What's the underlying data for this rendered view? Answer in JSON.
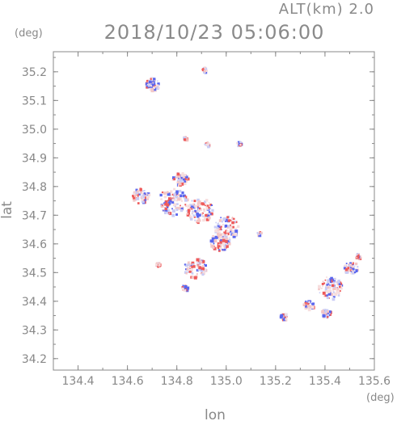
{
  "chart_data": {
    "type": "scatter",
    "title": "2018/10/23 05:06:00",
    "subtitle": "ALT(km) 2.0",
    "xlabel": "lon",
    "ylabel": "lat",
    "x_unit": "(deg)",
    "y_unit": "(deg)",
    "xlim": [
      134.3,
      135.6
    ],
    "ylim": [
      34.16,
      35.27
    ],
    "x_ticks": [
      "134.4",
      "134.6",
      "134.8",
      "135.0",
      "135.2",
      "135.4",
      "135.6"
    ],
    "y_ticks": [
      "34.2",
      "34.3",
      "34.4",
      "34.5",
      "34.6",
      "34.7",
      "34.8",
      "34.9",
      "35.0",
      "35.1",
      "35.2"
    ],
    "grid": false,
    "colors": {
      "positive": "#ee5a5a",
      "negative": "#5a66ee",
      "faint": "#f3c6c6",
      "axis": "#888888"
    },
    "clusters": [
      {
        "lon": 134.7,
        "lat": 35.16,
        "r": 0.03
      },
      {
        "lon": 134.91,
        "lat": 35.21,
        "r": 0.01
      },
      {
        "lon": 134.83,
        "lat": 34.97,
        "r": 0.008
      },
      {
        "lon": 134.92,
        "lat": 34.95,
        "r": 0.01
      },
      {
        "lon": 135.05,
        "lat": 34.95,
        "r": 0.012
      },
      {
        "lon": 134.81,
        "lat": 34.83,
        "r": 0.03
      },
      {
        "lon": 134.65,
        "lat": 34.77,
        "r": 0.035
      },
      {
        "lon": 134.78,
        "lat": 34.75,
        "r": 0.06
      },
      {
        "lon": 134.89,
        "lat": 34.72,
        "r": 0.055
      },
      {
        "lon": 135.0,
        "lat": 34.66,
        "r": 0.05
      },
      {
        "lon": 134.97,
        "lat": 34.61,
        "r": 0.04
      },
      {
        "lon": 134.87,
        "lat": 34.52,
        "r": 0.045
      },
      {
        "lon": 134.72,
        "lat": 34.53,
        "r": 0.01
      },
      {
        "lon": 134.83,
        "lat": 34.45,
        "r": 0.012
      },
      {
        "lon": 135.13,
        "lat": 34.64,
        "r": 0.008
      },
      {
        "lon": 135.23,
        "lat": 34.35,
        "r": 0.015
      },
      {
        "lon": 135.33,
        "lat": 34.39,
        "r": 0.02
      },
      {
        "lon": 135.42,
        "lat": 34.45,
        "r": 0.05
      },
      {
        "lon": 135.5,
        "lat": 34.52,
        "r": 0.03
      },
      {
        "lon": 135.4,
        "lat": 34.36,
        "r": 0.02
      },
      {
        "lon": 135.53,
        "lat": 34.56,
        "r": 0.01
      }
    ]
  }
}
